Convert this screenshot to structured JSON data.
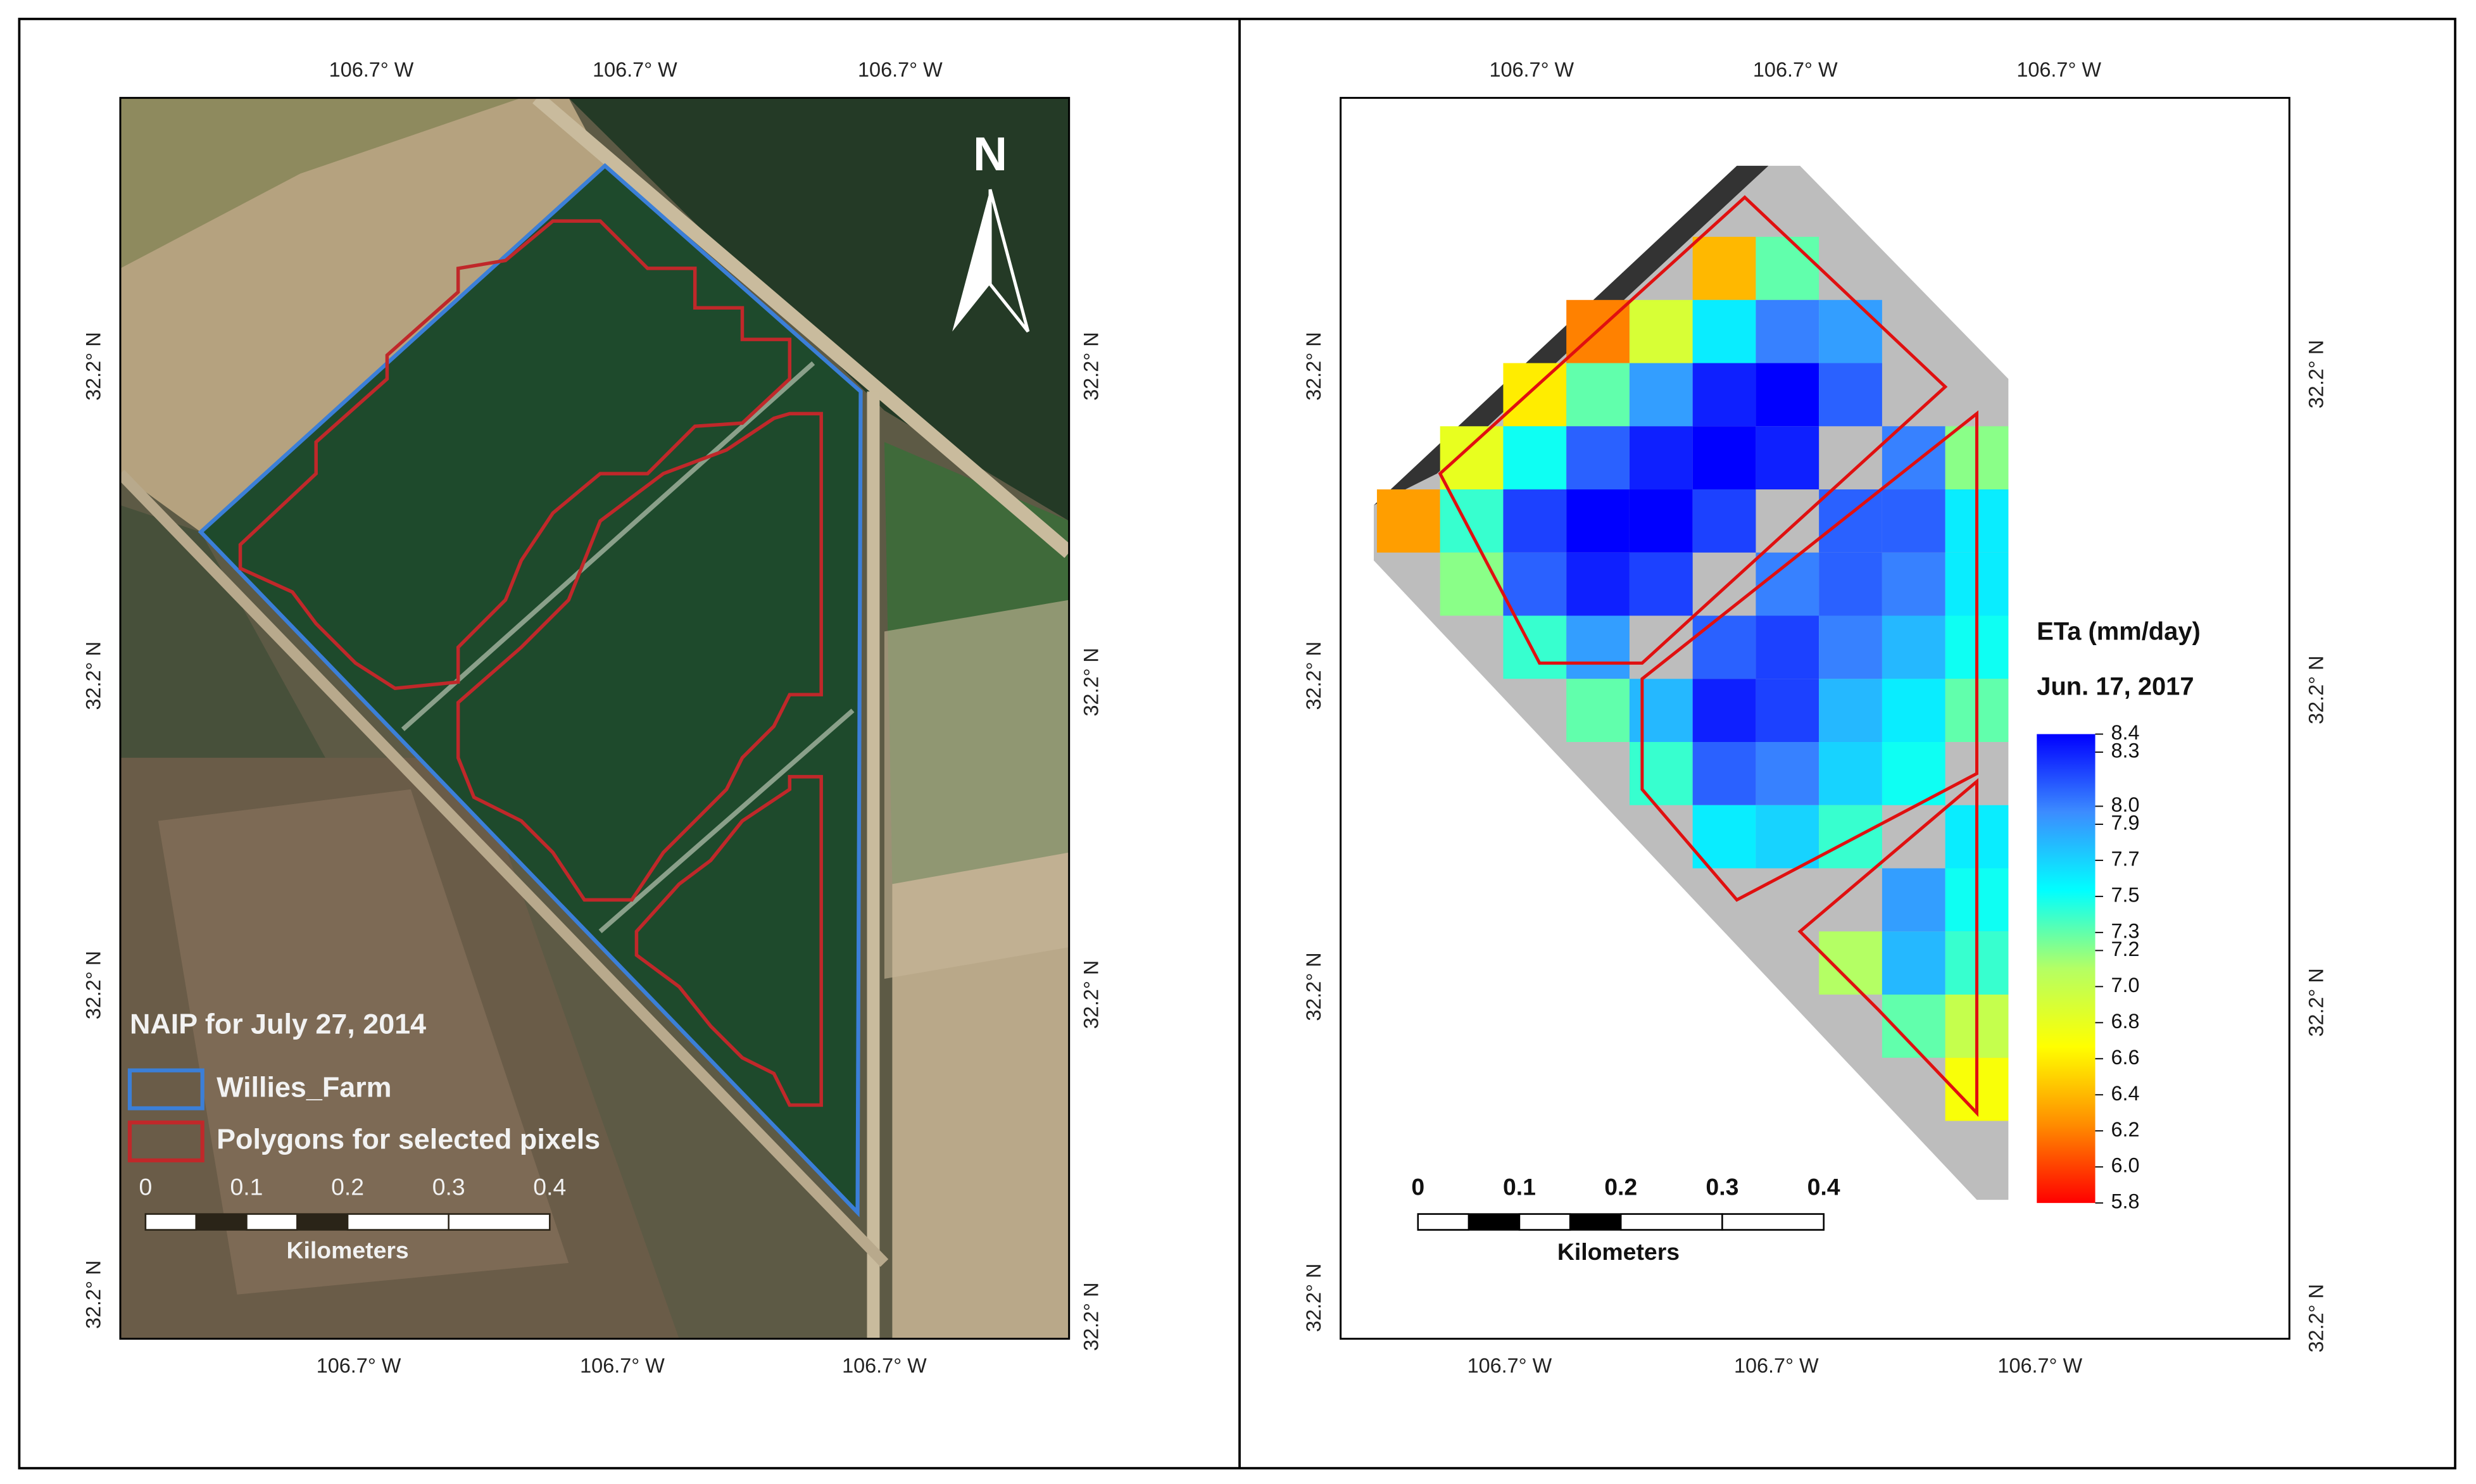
{
  "left_map": {
    "top_labels": [
      "106.7° W",
      "106.7° W",
      "106.7° W"
    ],
    "bottom_labels": [
      "106.7° W",
      "106.7° W",
      "106.7° W"
    ],
    "left_labels": [
      "32.2° N",
      "32.2° N",
      "32.2° N",
      "32.2° N"
    ],
    "right_labels": [
      "32.2° N",
      "32.2° N",
      "32.2° N",
      "32.2° N"
    ],
    "north": "N",
    "legend": {
      "title": "NAIP for July 27, 2014",
      "items": [
        "Willies_Farm",
        "Polygons for selected pixels"
      ]
    },
    "scale_bar": {
      "ticks": [
        0,
        0.1,
        0.2,
        0.3,
        0.4
      ],
      "unit": "Kilometers"
    }
  },
  "right_map": {
    "top_labels": [
      "106.7° W",
      "106.7° W",
      "106.7° W"
    ],
    "bottom_labels": [
      "106.7° W",
      "106.7° W",
      "106.7° W"
    ],
    "left_labels": [
      "32.2° N",
      "32.2° N",
      "32.2° N",
      "32.2° N"
    ],
    "right_labels": [
      "32.2° N",
      "32.2° N",
      "32.2° N",
      "32.2° N"
    ],
    "colorbar": {
      "title": "ETa (mm/day)",
      "subtitle": "Jun. 17, 2017",
      "lim": [
        5.8,
        8.4
      ],
      "ticks": [
        {
          "value": 8.4,
          "label": "8.4"
        },
        {
          "value": 8.3,
          "label": "8.3"
        },
        {
          "value": 8,
          "label": "8.0"
        },
        {
          "value": 7.9,
          "label": "7.9"
        },
        {
          "value": 7.7,
          "label": "7.7"
        },
        {
          "value": 7.5,
          "label": "7.5"
        },
        {
          "value": 7.3,
          "label": "7.3"
        },
        {
          "value": 7.2,
          "label": "7.2"
        },
        {
          "value": 7,
          "label": "7.0"
        },
        {
          "value": 6.8,
          "label": "6.8"
        },
        {
          "value": 6.6,
          "label": "6.6"
        },
        {
          "value": 6.4,
          "label": "6.4"
        },
        {
          "value": 6.2,
          "label": "6.2"
        },
        {
          "value": 6,
          "label": "6.0"
        },
        {
          "value": 5.8,
          "label": "5.8"
        }
      ],
      "colors": [
        "#ff0000",
        "#ff8c00",
        "#ffff00",
        "#b4ff64",
        "#00ffff",
        "#3c8cff",
        "#0000ff"
      ]
    },
    "raster": {
      "values": [
        [
          null,
          null,
          null,
          null,
          null,
          null,
          null,
          null,
          null,
          null
        ],
        [
          null,
          null,
          null,
          null,
          null,
          6.4,
          7.3,
          null,
          null,
          null
        ],
        [
          null,
          null,
          null,
          6.2,
          6.9,
          7.6,
          8.0,
          7.9,
          null,
          null
        ],
        [
          null,
          null,
          6.6,
          7.3,
          7.9,
          8.3,
          8.4,
          8.1,
          null,
          null
        ],
        [
          null,
          6.8,
          7.5,
          8.1,
          8.3,
          8.4,
          8.3,
          null,
          8.0,
          7.2
        ],
        [
          6.3,
          7.4,
          8.2,
          8.4,
          8.4,
          8.2,
          null,
          8.1,
          8.1,
          7.6
        ],
        [
          null,
          7.2,
          8.1,
          8.3,
          8.2,
          null,
          8.0,
          8.1,
          8.0,
          7.6
        ],
        [
          null,
          null,
          7.4,
          7.9,
          null,
          8.1,
          8.2,
          8.0,
          7.8,
          7.5
        ],
        [
          null,
          null,
          null,
          7.3,
          7.8,
          8.3,
          8.2,
          7.8,
          7.6,
          7.3
        ],
        [
          null,
          null,
          null,
          null,
          7.4,
          8.1,
          8.0,
          7.7,
          7.5,
          null
        ],
        [
          null,
          null,
          null,
          null,
          null,
          7.6,
          7.7,
          7.4,
          null,
          7.6
        ],
        [
          null,
          null,
          null,
          null,
          null,
          null,
          null,
          null,
          7.9,
          7.5
        ],
        [
          null,
          null,
          null,
          null,
          null,
          null,
          null,
          7.1,
          7.8,
          7.4
        ],
        [
          null,
          null,
          null,
          null,
          null,
          null,
          null,
          null,
          7.3,
          7.0
        ],
        [
          null,
          null,
          null,
          null,
          null,
          null,
          null,
          null,
          null,
          6.7
        ],
        [
          null,
          null,
          null,
          null,
          null,
          null,
          null,
          null,
          null,
          null
        ]
      ]
    },
    "scale_bar": {
      "ticks": [
        0,
        0.1,
        0.2,
        0.3,
        0.4
      ],
      "unit": "Kilometers"
    }
  }
}
